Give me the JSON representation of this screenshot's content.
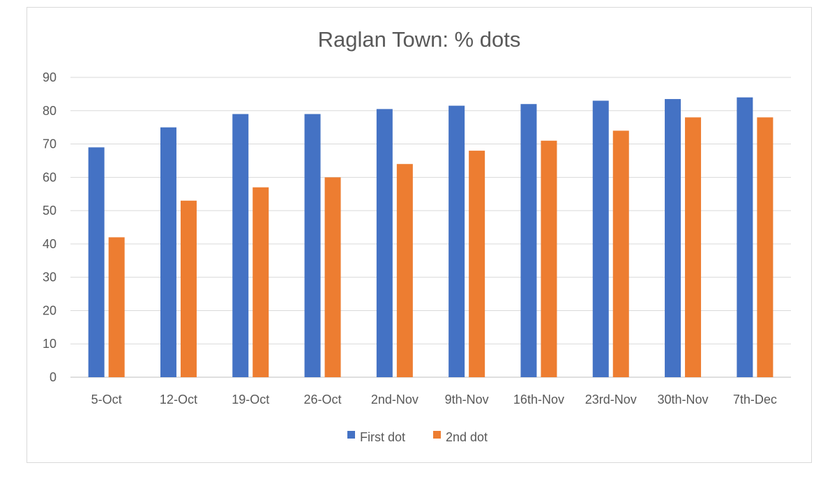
{
  "chart_data": {
    "type": "bar",
    "title": "Raglan Town: % dots",
    "xlabel": "",
    "ylabel": "",
    "categories": [
      "5-Oct",
      "12-Oct",
      "19-Oct",
      "26-Oct",
      "2nd-Nov",
      "9th-Nov",
      "16th-Nov",
      "23rd-Nov",
      "30th-Nov",
      "7th-Dec"
    ],
    "series": [
      {
        "name": "First dot",
        "color": "#4472C4",
        "values": [
          69,
          75,
          79,
          79,
          80.5,
          81.5,
          82,
          83,
          83.5,
          84
        ]
      },
      {
        "name": "2nd dot",
        "color": "#ED7D31",
        "values": [
          42,
          53,
          57,
          60,
          64,
          68,
          71,
          74,
          78,
          78
        ]
      }
    ],
    "ylim": [
      0,
      90
    ],
    "yticks": [
      0,
      10,
      20,
      30,
      40,
      50,
      60,
      70,
      80,
      90
    ],
    "grid": true,
    "legend_position": "bottom"
  }
}
